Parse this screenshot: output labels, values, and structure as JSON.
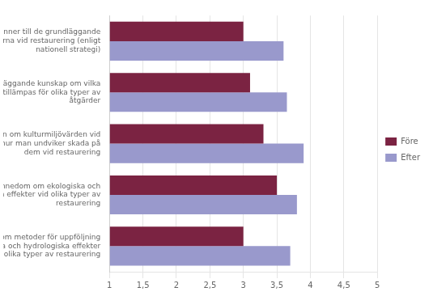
{
  "chart_data": {
    "type": "bar",
    "orientation": "horizontal",
    "categories": [
      "Känner till de grundläggande\nprioriteringarna vid restaurering (enligt\nnationell strategi)",
      "Har grundläggande kunskap om vilka\ntekniker som tillämpas för olika typer av\nåtgärder",
      "Är medveten om kulturmiljövärden vid\nvatten och hur man undviker skada på\ndem vid restaurering",
      "Har kännedom om ekologiska och\nhydrologiska effekter vid olika typer av\nrestaurering",
      "Har kännedom om metoder för uppföljning\nav ekologiska och hydrologiska effekter\nvid olika typer av restaurering"
    ],
    "series": [
      {
        "name": "Före",
        "color": "#7B2342",
        "values": [
          3.0,
          3.1,
          3.3,
          3.5,
          3.0
        ]
      },
      {
        "name": "Efter",
        "color": "#9999CC",
        "values": [
          3.6,
          3.65,
          3.9,
          3.8,
          3.7
        ]
      }
    ],
    "xlim": [
      1,
      5
    ],
    "xticks": [
      1,
      {
        "value": 1.5,
        "label": "1,5"
      },
      2,
      {
        "value": 2.5,
        "label": "2,5"
      },
      3,
      {
        "value": 3.5,
        "label": "3,5"
      },
      4,
      {
        "value": 4.5,
        "label": "4,5"
      },
      5
    ],
    "grid": true,
    "legend": "right"
  }
}
